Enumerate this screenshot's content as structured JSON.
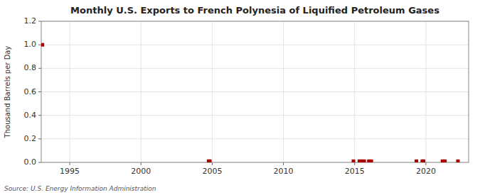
{
  "chart_data": {
    "type": "scatter",
    "title": "Monthly U.S. Exports to French Polynesia of Liquified Petroleum Gases",
    "ylabel": "Thousand Barrels per Day",
    "annotations": [
      "Source: U.S. Energy Information Administration"
    ],
    "x": [
      1993.0833333333333,
      2004.75,
      2004.8333333333333,
      2014.9166666666667,
      2015.3333333333333,
      2015.5,
      2015.6666666666667,
      2016.0,
      2016.1666666666667,
      2019.3333333333333,
      2019.75,
      2019.8333333333333,
      2021.1666666666667,
      2021.3333333333333,
      2022.25
    ],
    "values": [
      1.0,
      0.01,
      0.01,
      0.01,
      0.01,
      0.01,
      0.01,
      0.01,
      0.01,
      0.01,
      0.01,
      0.01,
      0.01,
      0.01,
      0.01
    ],
    "color": "#aa0000",
    "marker": "square",
    "xlim": [
      1993.0,
      2023.0
    ],
    "xticks": [
      1995,
      2000,
      2005,
      2010,
      2015,
      2020
    ],
    "ylim": [
      0,
      1.2
    ],
    "yticks": [
      {
        "value": 0.0,
        "label": "0.0"
      },
      0.2,
      0.4,
      0.6,
      0.8,
      {
        "value": 1.0,
        "label": "1.0"
      },
      1.2
    ],
    "grid": true
  }
}
